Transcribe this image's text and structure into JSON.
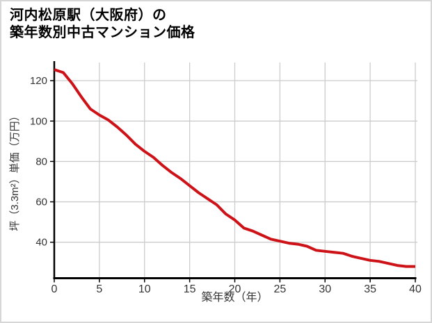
{
  "window": {
    "background_color": "#ffffff",
    "border_color": "#d6d6d6"
  },
  "title": {
    "line1": "河内松原駅（大阪府）の",
    "line2": "築年数別中古マンション価格"
  },
  "chart_data": {
    "type": "line",
    "title": "河内松原駅（大阪府）の築年数別中古マンション価格",
    "xlabel": "築年数（年）",
    "ylabel": "坪（3.3m²）単価（万円）",
    "x": [
      0,
      1,
      2,
      3,
      4,
      5,
      6,
      7,
      8,
      9,
      10,
      11,
      12,
      13,
      14,
      15,
      16,
      17,
      18,
      19,
      20,
      21,
      22,
      23,
      24,
      25,
      26,
      27,
      28,
      29,
      30,
      31,
      32,
      33,
      34,
      35,
      36,
      37,
      38,
      39,
      40
    ],
    "values": [
      125.5,
      124,
      118.5,
      112,
      106,
      103,
      100.5,
      97,
      93,
      88.5,
      85,
      82,
      78,
      74.5,
      71.5,
      68,
      64.5,
      61.5,
      58.5,
      54,
      51,
      47,
      45.5,
      43.5,
      41.5,
      40.5,
      39.5,
      39,
      38,
      36,
      35.5,
      35,
      34.5,
      33,
      32,
      31,
      30.5,
      29.5,
      28.5,
      28,
      28
    ],
    "x_ticks": [
      0,
      5,
      10,
      15,
      20,
      25,
      30,
      35,
      40
    ],
    "y_ticks": [
      40,
      60,
      80,
      100,
      120
    ],
    "xlim": [
      0,
      40
    ],
    "ylim": [
      22,
      129
    ],
    "grid": true,
    "legend": "none",
    "line_color": "#cd1218",
    "grid_color": "#cccccc",
    "axis_color": "#000000",
    "tick_label_color": "#333333"
  }
}
